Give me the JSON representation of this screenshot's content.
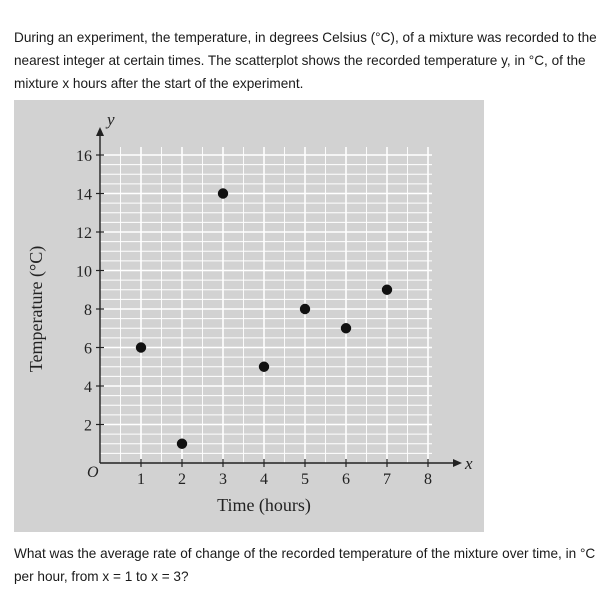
{
  "problem": {
    "intro": "During an experiment, the temperature, in degrees Celsius (°C), of a mixture was recorded to the nearest integer at certain times. The scatterplot shows the recorded temperature y, in °C, of the mixture x hours after the start of the experiment.",
    "question": "What was the average rate of change of the recorded temperature of the mixture over time, in °C per hour, from x = 1 to x = 3?"
  },
  "chart_data": {
    "type": "scatter",
    "xlabel": "Time (hours)",
    "ylabel": "Temperature (°C)",
    "x_axis_var": "x",
    "y_axis_var": "y",
    "origin_label": "O",
    "xlim": [
      0,
      8
    ],
    "ylim": [
      0,
      16
    ],
    "x_ticks": [
      1,
      2,
      3,
      4,
      5,
      6,
      7,
      8
    ],
    "y_ticks": [
      2,
      4,
      6,
      8,
      10,
      12,
      14,
      16
    ],
    "grid": true,
    "series": [
      {
        "x": [
          1,
          2,
          3,
          4,
          5,
          6,
          7
        ],
        "y": [
          6,
          1,
          14,
          5,
          8,
          7,
          9
        ]
      }
    ],
    "colors": {
      "background": "#d2d2d2",
      "grid": "#ffffff",
      "axis": "#222222",
      "point": "#111111"
    }
  }
}
